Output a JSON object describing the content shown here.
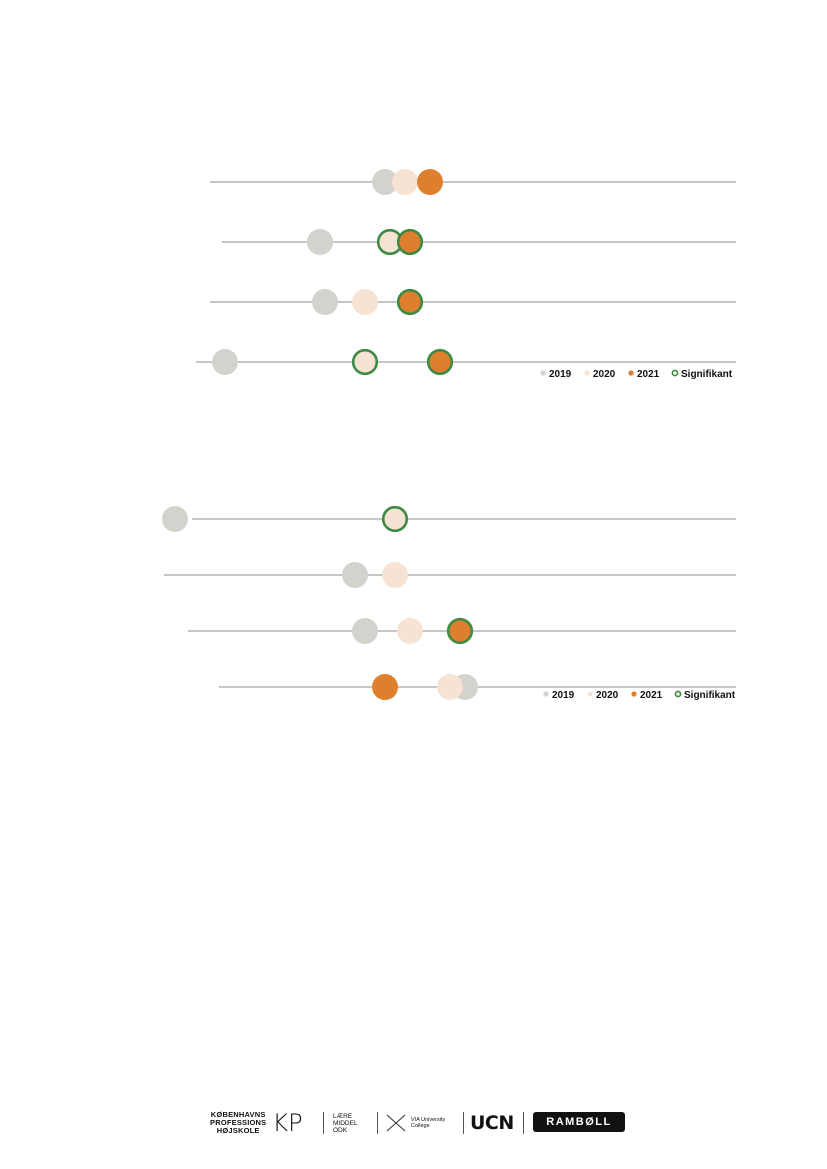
{
  "colors": {
    "y2019": "#d3d2cc",
    "y2020": "#f7e3d3",
    "y2021": "#dd7f2c",
    "significant": "#3e8a44",
    "axis_line": "#8c8c8c"
  },
  "legend": {
    "items": [
      "2019",
      "2020",
      "2021",
      "Signifikant"
    ]
  },
  "chart_data": [
    {
      "type": "scatter",
      "title": "",
      "series": [
        {
          "name": "2019",
          "values": [
            47.0,
            34.0,
            35.0,
            15.0
          ]
        },
        {
          "name": "2020",
          "values": [
            51.0,
            48.0,
            43.0,
            43.0
          ]
        },
        {
          "name": "2021",
          "values": [
            56.0,
            52.0,
            52.0,
            58.0
          ]
        }
      ],
      "significant": {
        "2019": [
          false,
          false,
          false,
          false
        ],
        "2020": [
          false,
          true,
          false,
          true
        ],
        "2021": [
          false,
          true,
          true,
          true
        ]
      },
      "show_axis_labels": false,
      "legend_position": "bottom-right"
    },
    {
      "type": "scatter",
      "title": "",
      "series": [
        {
          "name": "2019",
          "values": [
            5.0,
            41.0,
            43.0,
            63.0
          ]
        },
        {
          "name": "2020",
          "values": [
            49.0,
            49.0,
            52.0,
            60.0
          ]
        },
        {
          "name": "2021",
          "values": [
            null,
            null,
            62.0,
            47.0
          ]
        }
      ],
      "significant": {
        "2019": [
          false,
          false,
          false,
          false
        ],
        "2020": [
          true,
          false,
          false,
          false
        ],
        "2021": [
          false,
          false,
          true,
          false
        ]
      },
      "show_axis_labels": false,
      "legend_position": "bottom-right"
    }
  ],
  "footer": {
    "logo_kp": "KØBENHAVNS\nPROFESSIONS\nHØJSKOLE",
    "logo_kp_mark": "KP",
    "logo_laeremiddel": "LÆRE\nMIDDEL\nODK",
    "logo_via": "VIA University\nCollege",
    "logo_ucn": "UCN",
    "logo_ramboll": "RAMBØLL"
  }
}
